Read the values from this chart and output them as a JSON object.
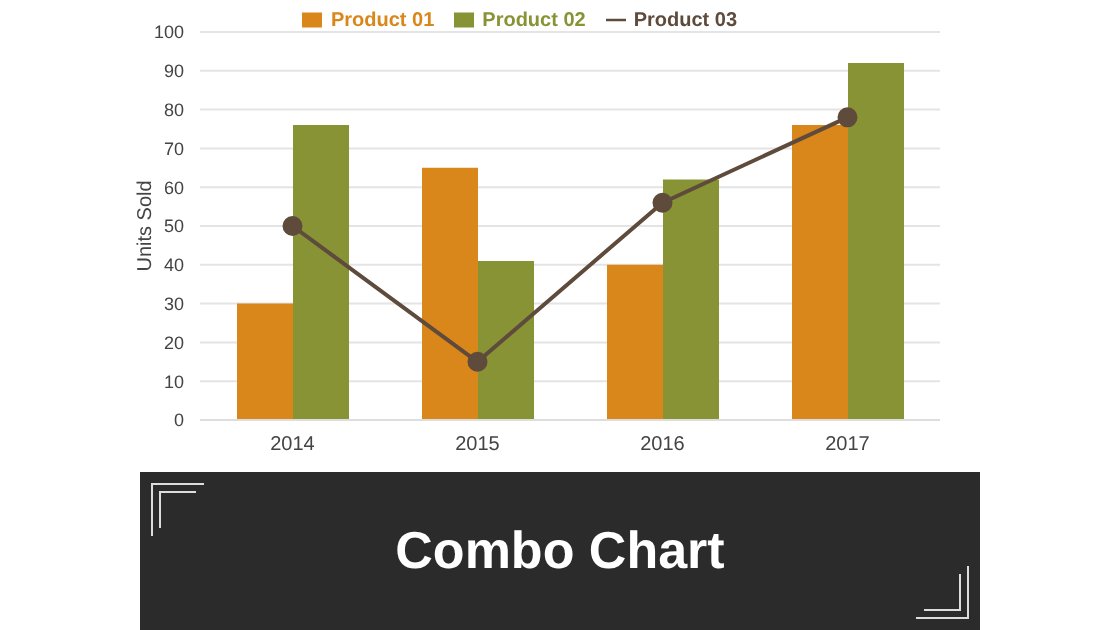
{
  "chart_data": {
    "type": "bar",
    "title": "Combo Chart",
    "ylabel": "Units Sold",
    "categories": [
      "2014",
      "2015",
      "2016",
      "2017"
    ],
    "series": [
      {
        "name": "Product 01",
        "color": "#d9861a",
        "values": [
          30,
          65,
          40,
          76
        ]
      },
      {
        "name": "Product 02",
        "color": "#879335",
        "values": [
          76,
          41,
          62,
          92
        ]
      },
      {
        "name": "Product 03",
        "type": "line",
        "color": "#5e4b3c",
        "values": [
          50,
          15,
          56,
          78
        ],
        "marker": "circle"
      }
    ],
    "ylim": [
      0,
      100
    ],
    "yticks": [
      0,
      10,
      20,
      30,
      40,
      50,
      60,
      70,
      80,
      90,
      100
    ],
    "grid": "y",
    "legend": "top"
  }
}
